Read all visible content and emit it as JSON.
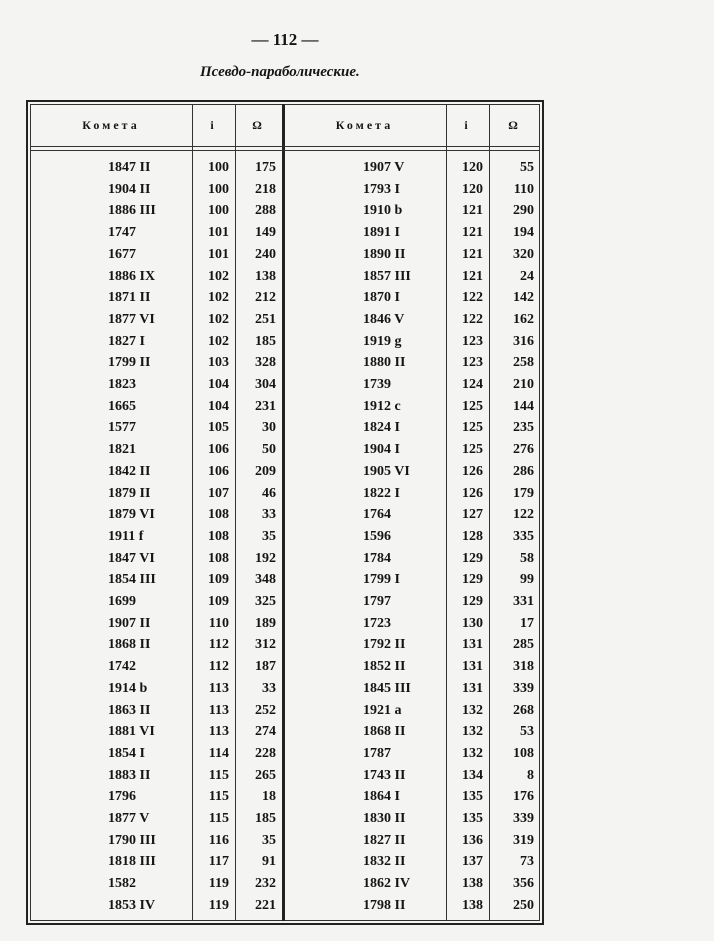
{
  "header": {
    "page_number": "— 112 —",
    "title": "Псевдо-параболические."
  },
  "table": {
    "columns": [
      "Комета",
      "i",
      "Ω",
      "Комета",
      "i",
      "Ω"
    ],
    "rows": [
      [
        "1847 II",
        100,
        175,
        "1907 V",
        120,
        55
      ],
      [
        "1904 II",
        100,
        218,
        "1793 I",
        120,
        110
      ],
      [
        "1886 III",
        100,
        288,
        "1910 b",
        121,
        290
      ],
      [
        "1747",
        101,
        149,
        "1891 I",
        121,
        194
      ],
      [
        "1677",
        101,
        240,
        "1890 II",
        121,
        320
      ],
      [
        "1886 IX",
        102,
        138,
        "1857 III",
        121,
        24
      ],
      [
        "1871 II",
        102,
        212,
        "1870 I",
        122,
        142
      ],
      [
        "1877 VI",
        102,
        251,
        "1846 V",
        122,
        162
      ],
      [
        "1827 I",
        102,
        185,
        "1919 g",
        123,
        316
      ],
      [
        "1799 II",
        103,
        328,
        "1880 II",
        123,
        258
      ],
      [
        "1823",
        104,
        304,
        "1739",
        124,
        210
      ],
      [
        "1665",
        104,
        231,
        "1912 c",
        125,
        144
      ],
      [
        "1577",
        105,
        30,
        "1824 I",
        125,
        235
      ],
      [
        "1821",
        106,
        50,
        "1904 I",
        125,
        276
      ],
      [
        "1842 II",
        106,
        209,
        "1905 VI",
        126,
        286
      ],
      [
        "1879 II",
        107,
        46,
        "1822 I",
        126,
        179
      ],
      [
        "1879 VI",
        108,
        33,
        "1764",
        127,
        122
      ],
      [
        "1911 f",
        108,
        35,
        "1596",
        128,
        335
      ],
      [
        "1847 VI",
        108,
        192,
        "1784",
        129,
        58
      ],
      [
        "1854 III",
        109,
        348,
        "1799 I",
        129,
        99
      ],
      [
        "1699",
        109,
        325,
        "1797",
        129,
        331
      ],
      [
        "1907 II",
        110,
        189,
        "1723",
        130,
        17
      ],
      [
        "1868 II",
        112,
        312,
        "1792 II",
        131,
        285
      ],
      [
        "1742",
        112,
        187,
        "1852 II",
        131,
        318
      ],
      [
        "1914 b",
        113,
        33,
        "1845 III",
        131,
        339
      ],
      [
        "1863 II",
        113,
        252,
        "1921 a",
        132,
        268
      ],
      [
        "1881 VI",
        113,
        274,
        "1868 II",
        132,
        53
      ],
      [
        "1854 I",
        114,
        228,
        "1787",
        132,
        108
      ],
      [
        "1883 II",
        115,
        265,
        "1743 II",
        134,
        8
      ],
      [
        "1796",
        115,
        18,
        "1864 I",
        135,
        176
      ],
      [
        "1877 V",
        115,
        185,
        "1830 II",
        135,
        339
      ],
      [
        "1790 III",
        116,
        35,
        "1827 II",
        136,
        319
      ],
      [
        "1818 III",
        117,
        91,
        "1832 II",
        137,
        73
      ],
      [
        "1582",
        119,
        232,
        "1862 IV",
        138,
        356
      ],
      [
        "1853 IV",
        119,
        221,
        "1798 II",
        138,
        250
      ]
    ]
  }
}
